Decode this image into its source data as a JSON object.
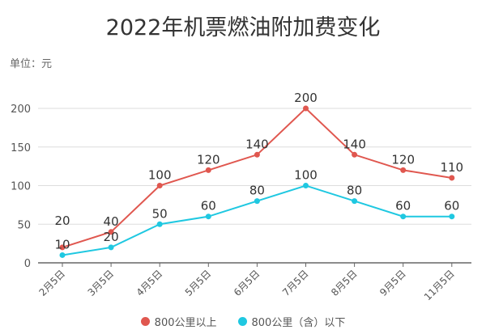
{
  "chart_data": {
    "type": "line",
    "title": "2022年机票燃油附加费变化",
    "unit_label": "单位：元",
    "categories": [
      "2月5日",
      "3月5日",
      "4月5日",
      "5月5日",
      "6月5日",
      "7月5日",
      "8月5日",
      "9月5日",
      "11月5日"
    ],
    "ylim": [
      0,
      200
    ],
    "yticks": [
      0,
      50,
      100,
      150,
      200
    ],
    "grid": true,
    "legend": "bottom",
    "series": [
      {
        "name": "800公里以上",
        "color": "#e0574f",
        "values": [
          20,
          40,
          100,
          120,
          140,
          200,
          140,
          120,
          110
        ]
      },
      {
        "name": "800公里（含）以下",
        "color": "#1fc8e1",
        "values": [
          10,
          20,
          50,
          60,
          80,
          100,
          80,
          60,
          60
        ]
      }
    ]
  }
}
